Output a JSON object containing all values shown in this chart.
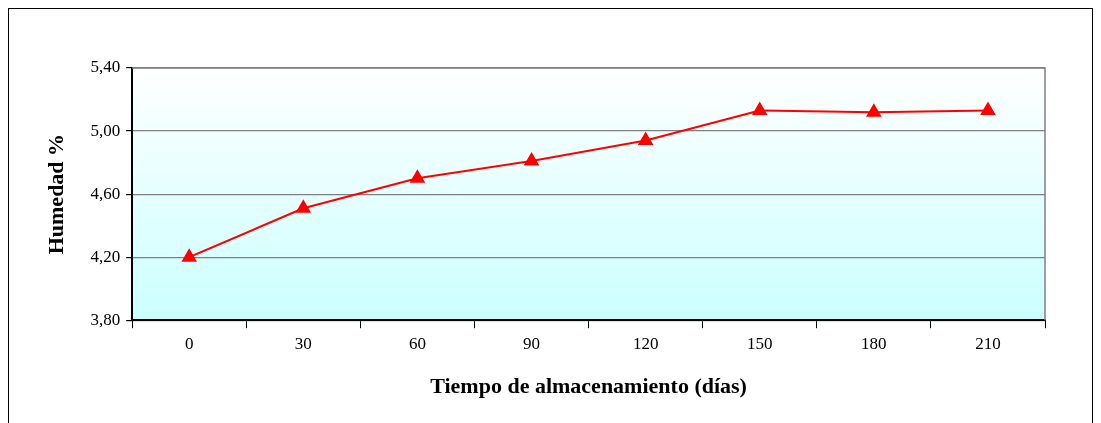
{
  "chart_data": {
    "type": "line",
    "xlabel": "Tiempo de almacenamiento (días)",
    "ylabel": "Humedad %",
    "categories": [
      "0",
      "30",
      "60",
      "90",
      "120",
      "150",
      "180",
      "210"
    ],
    "series": [
      {
        "color": "#ff0000",
        "values": [
          4.2,
          4.51,
          4.7,
          4.81,
          4.94,
          5.13,
          5.12,
          5.13
        ]
      }
    ],
    "ylim": [
      3.8,
      5.4
    ],
    "yticks": [
      {
        "value": 3.8,
        "label": "3,80"
      },
      {
        "value": 4.2,
        "label": "4,20"
      },
      {
        "value": 4.6,
        "label": "4,60"
      },
      {
        "value": 5.0,
        "label": "5,00"
      },
      {
        "value": 5.4,
        "label": "5,40"
      }
    ],
    "grid": "y",
    "marker": "triangle",
    "line_style": "solid"
  }
}
